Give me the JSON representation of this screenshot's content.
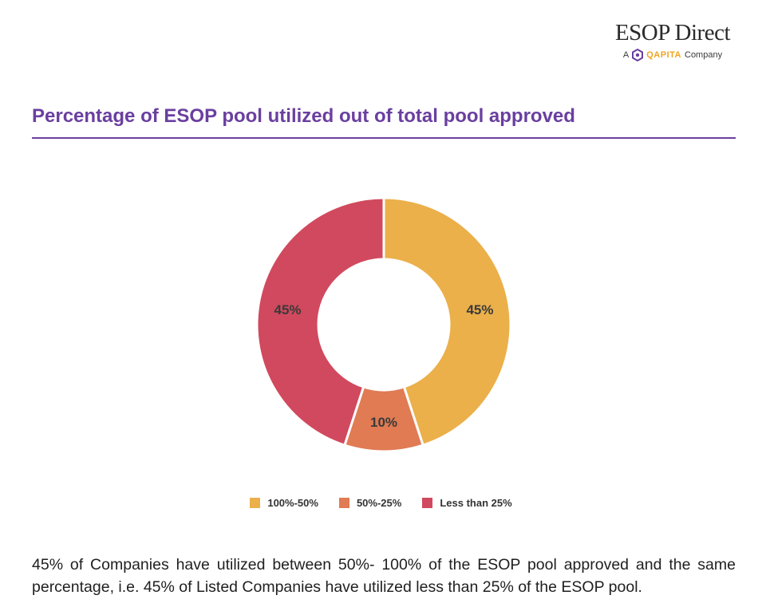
{
  "brand": {
    "name": "ESOP Direct",
    "sub_prefix": "A",
    "sub_company": "QAPITA",
    "sub_suffix": "Company",
    "colors": {
      "accent": "#f0a420",
      "icon": "#6a3fa0"
    }
  },
  "page": {
    "title": "Percentage of ESOP pool utilized out of total pool approved",
    "description": "45% of Companies have utilized between 50%- 100% of the ESOP pool approved and the same percentage, i.e. 45% of Listed Companies have utilized less than 25% of the ESOP pool.",
    "accent_color": "#6a3fa0"
  },
  "chart_data": {
    "type": "pie",
    "donut": true,
    "title": "",
    "legend_position": "bottom",
    "slices": [
      {
        "label": "100%-50%",
        "value": 45,
        "display": "45%",
        "color": "#ebb04a"
      },
      {
        "label": "50%-25%",
        "value": 10,
        "display": "10%",
        "color": "#e07b53"
      },
      {
        "label": "Less than 25%",
        "value": 45,
        "display": "45%",
        "color": "#d1495e"
      }
    ]
  }
}
